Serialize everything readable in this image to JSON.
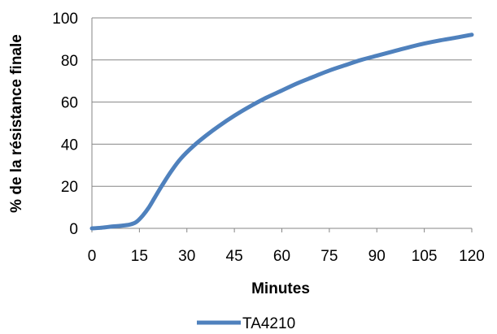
{
  "chart_data": {
    "type": "line",
    "title": "",
    "xlabel": "Minutes",
    "ylabel": "% de la résistance finale",
    "xlim": [
      0,
      120
    ],
    "ylim": [
      0,
      100
    ],
    "x_ticks": [
      "0",
      "15",
      "30",
      "45",
      "60",
      "75",
      "90",
      "105",
      "120"
    ],
    "y_ticks": [
      "0",
      "20",
      "40",
      "60",
      "80",
      "100"
    ],
    "grid": "horizontal",
    "legend_position": "bottom",
    "series": [
      {
        "name": "TA4210",
        "color": "#4F81BD",
        "x": [
          0,
          3,
          6,
          9,
          12,
          14,
          16,
          18,
          20,
          22,
          25,
          28,
          32,
          36,
          40,
          45,
          50,
          55,
          60,
          65,
          70,
          75,
          80,
          85,
          90,
          95,
          100,
          105,
          110,
          115,
          120
        ],
        "y": [
          0,
          0.3,
          0.8,
          1.2,
          1.8,
          3,
          6,
          10,
          15,
          20,
          27,
          33,
          39,
          44,
          48.5,
          53.5,
          58,
          62,
          65.5,
          69,
          72,
          75,
          77.5,
          80,
          82,
          84,
          86,
          87.8,
          89.3,
          90.6,
          92
        ]
      }
    ]
  }
}
